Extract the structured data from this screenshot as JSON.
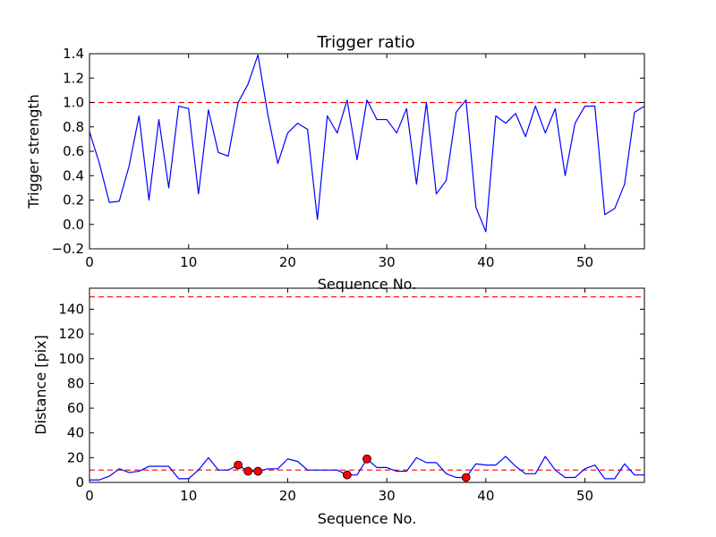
{
  "chart_data": [
    {
      "type": "line",
      "title": "Trigger ratio",
      "xlabel": "Sequence No.",
      "ylabel": "Trigger strength",
      "xlim": [
        0,
        56
      ],
      "ylim": [
        -0.2,
        1.4
      ],
      "xticks": [
        0,
        10,
        20,
        30,
        40,
        50
      ],
      "yticks": [
        -0.2,
        0.0,
        0.2,
        0.4,
        0.6,
        0.8,
        1.0,
        1.2,
        1.4
      ],
      "xtick_labels": [
        "0",
        "10",
        "20",
        "30",
        "40",
        "50"
      ],
      "ytick_labels": [
        "−0.2",
        "0.0",
        "0.2",
        "0.4",
        "0.6",
        "0.8",
        "1.0",
        "1.2",
        "1.4"
      ],
      "grid": false,
      "series": [
        {
          "color": "#0000ff",
          "x": [
            0,
            1,
            2,
            3,
            4,
            5,
            6,
            7,
            8,
            9,
            10,
            11,
            12,
            13,
            14,
            15,
            16,
            17,
            18,
            19,
            20,
            21,
            22,
            23,
            24,
            25,
            26,
            27,
            28,
            29,
            30,
            31,
            32,
            33,
            34,
            35,
            36,
            37,
            38,
            39,
            40,
            41,
            42,
            43,
            44,
            45,
            46,
            47,
            48,
            49,
            50,
            51,
            52,
            53,
            54,
            55,
            56
          ],
          "values": [
            0.76,
            0.5,
            0.18,
            0.19,
            0.48,
            0.89,
            0.2,
            0.86,
            0.3,
            0.97,
            0.95,
            0.25,
            0.94,
            0.59,
            0.56,
            1.0,
            1.15,
            1.39,
            0.9,
            0.5,
            0.75,
            0.83,
            0.78,
            0.04,
            0.89,
            0.75,
            1.02,
            0.53,
            1.02,
            0.86,
            0.86,
            0.75,
            0.95,
            0.33,
            1.0,
            0.25,
            0.36,
            0.92,
            1.02,
            0.14,
            -0.06,
            0.89,
            0.83,
            0.91,
            0.72,
            0.97,
            0.75,
            0.95,
            0.4,
            0.83,
            0.97,
            0.97,
            0.08,
            0.13,
            0.33,
            0.92,
            0.97
          ]
        }
      ],
      "reference_lines": [
        {
          "y": 1.0,
          "color": "#ff0000",
          "style": "dashed"
        }
      ]
    },
    {
      "type": "line",
      "title": "",
      "xlabel": "Sequence No.",
      "ylabel": "Distance [pix]",
      "xlim": [
        0,
        56
      ],
      "ylim": [
        0,
        157
      ],
      "xticks": [
        0,
        10,
        20,
        30,
        40,
        50
      ],
      "yticks": [
        0,
        20,
        40,
        60,
        80,
        100,
        120,
        140
      ],
      "xtick_labels": [
        "0",
        "10",
        "20",
        "30",
        "40",
        "50"
      ],
      "ytick_labels": [
        "0",
        "20",
        "40",
        "60",
        "80",
        "100",
        "120",
        "140"
      ],
      "grid": false,
      "series": [
        {
          "color": "#0000ff",
          "x": [
            0,
            1,
            2,
            3,
            4,
            5,
            6,
            7,
            8,
            9,
            10,
            11,
            12,
            13,
            14,
            15,
            16,
            17,
            18,
            19,
            20,
            21,
            22,
            23,
            24,
            25,
            26,
            27,
            28,
            29,
            30,
            31,
            32,
            33,
            34,
            35,
            36,
            37,
            38,
            39,
            40,
            41,
            42,
            43,
            44,
            45,
            46,
            47,
            48,
            49,
            50,
            51,
            52,
            53,
            54,
            55,
            56
          ],
          "values": [
            2,
            2,
            5,
            11,
            8,
            9,
            13,
            13,
            13,
            3,
            3,
            10,
            20,
            10,
            10,
            14,
            9,
            9,
            11,
            11,
            19,
            17,
            10,
            10,
            10,
            10,
            6,
            6,
            19,
            12,
            12,
            9,
            9,
            20,
            16,
            16,
            7,
            4,
            4,
            15,
            14,
            14,
            21,
            13,
            7,
            7,
            21,
            10,
            4,
            4,
            11,
            14,
            3,
            3,
            15,
            6,
            6
          ]
        },
        {
          "type": "scatter",
          "color": "#ff0000",
          "x": [
            15,
            16,
            17,
            26,
            28,
            38
          ],
          "values": [
            14,
            9,
            9,
            6,
            19,
            4
          ]
        }
      ],
      "reference_lines": [
        {
          "y": 10,
          "color": "#ff0000",
          "style": "dashed"
        },
        {
          "y": 150,
          "color": "#ff0000",
          "style": "dashed"
        }
      ]
    }
  ]
}
